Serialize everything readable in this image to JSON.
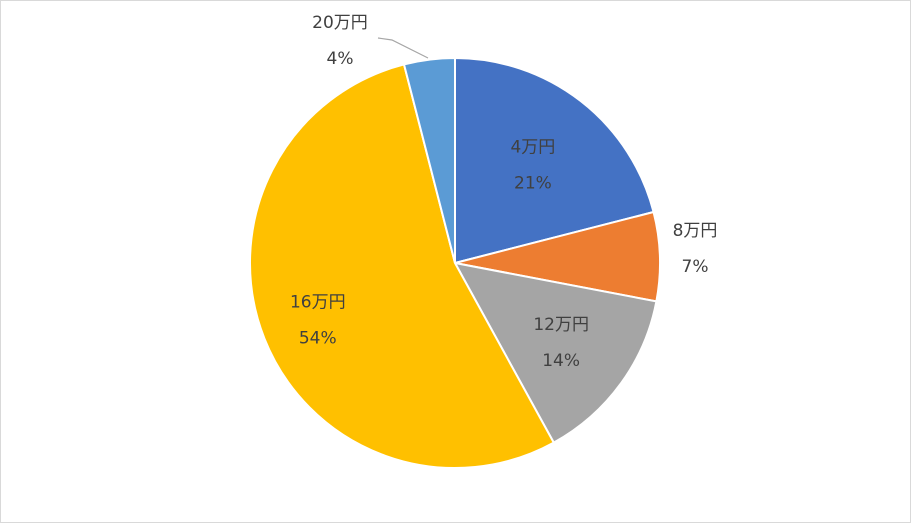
{
  "chart_data": {
    "type": "pie",
    "title": "",
    "slices": [
      {
        "category": "4万円",
        "percent_label": "21%",
        "value": 21,
        "color": "#4472C4"
      },
      {
        "category": "8万円",
        "percent_label": "7%",
        "value": 7,
        "color": "#ED7D31"
      },
      {
        "category": "12万円",
        "percent_label": "14%",
        "value": 14,
        "color": "#A5A5A5"
      },
      {
        "category": "16万円",
        "percent_label": "54%",
        "value": 54,
        "color": "#FFC000"
      },
      {
        "category": "20万円",
        "percent_label": "4%",
        "value": 4,
        "color": "#5B9BD5"
      }
    ],
    "start_angle_deg": 0,
    "direction": "clockwise",
    "legend": "none",
    "leader_line_color": "#A6A6A6"
  }
}
